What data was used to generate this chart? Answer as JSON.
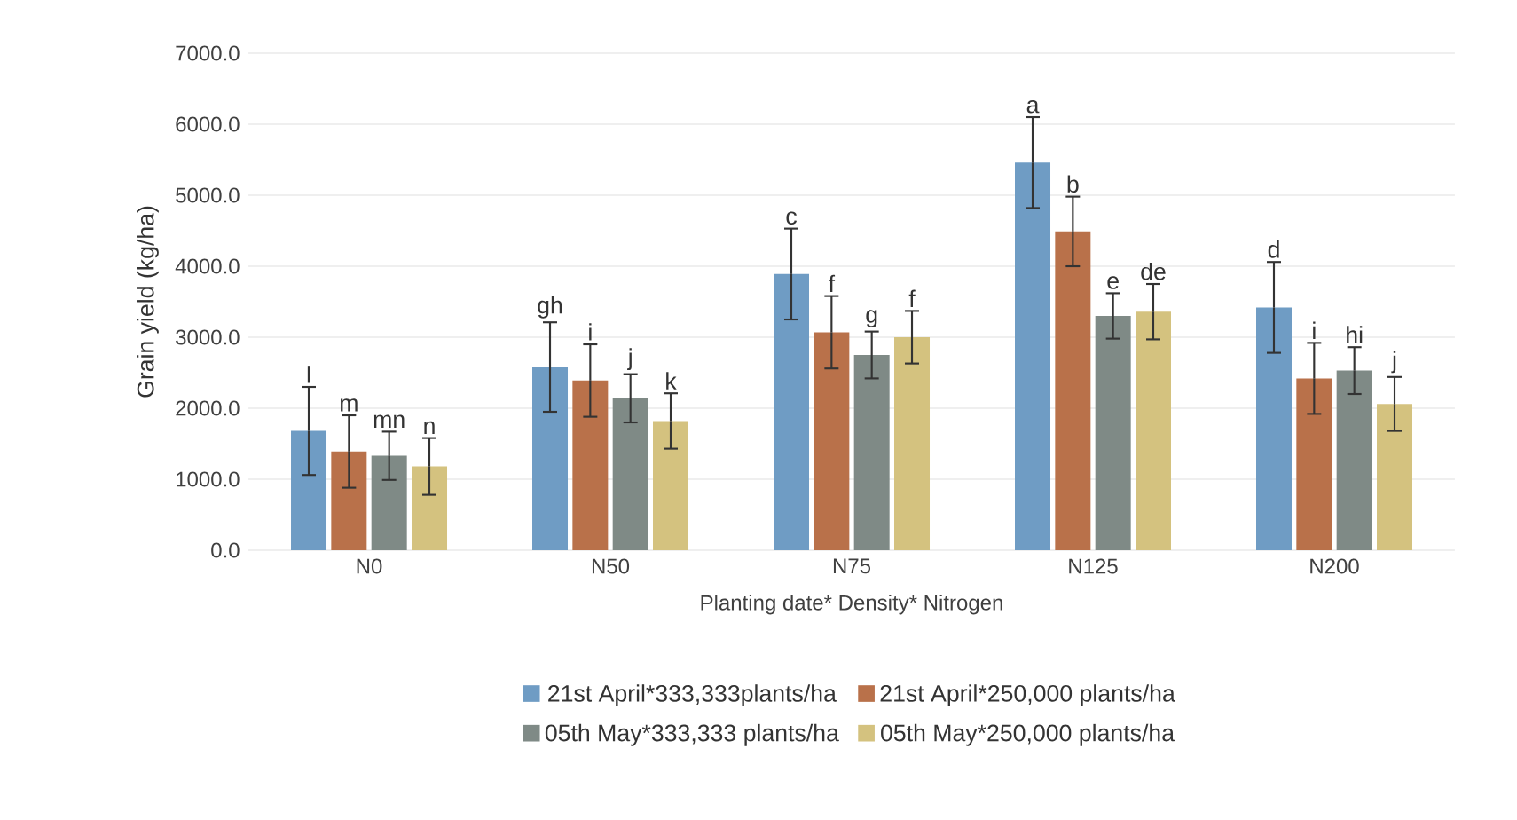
{
  "chart_data": {
    "type": "bar",
    "xlabel": "Planting date* Density* Nitrogen",
    "ylabel": "Grain yield (kg/ha)",
    "categories": [
      "N0",
      "N50",
      "N75",
      "N125",
      "N200"
    ],
    "series": [
      {
        "name": "21st April*333,333plants/ha",
        "color": "#6f9cc4",
        "values": [
          1680,
          2580,
          3890,
          5460,
          3420
        ],
        "errors": [
          620,
          630,
          640,
          640,
          640
        ]
      },
      {
        "name": "21st April*250,000 plants/ha",
        "color": "#b9714a",
        "values": [
          1390,
          2390,
          3070,
          4490,
          2420
        ],
        "errors": [
          510,
          510,
          510,
          490,
          500
        ]
      },
      {
        "name": "05th May*333,333 plants/ha",
        "color": "#7f8a86",
        "values": [
          1330,
          2140,
          2750,
          3300,
          2530
        ],
        "errors": [
          340,
          340,
          330,
          320,
          330
        ]
      },
      {
        "name": "05th May*250,000 plants/ha",
        "color": "#d4c27f",
        "values": [
          1180,
          1820,
          3000,
          3360,
          2060
        ],
        "errors": [
          400,
          390,
          370,
          390,
          380
        ]
      }
    ],
    "ylim": [
      0,
      7000
    ],
    "yticks": [
      {
        "value": 0,
        "label": "0.0"
      },
      {
        "value": 1000,
        "label": "1000.0"
      },
      {
        "value": 2000,
        "label": "2000.0"
      },
      {
        "value": 3000,
        "label": "3000.0"
      },
      {
        "value": 4000,
        "label": "4000.0"
      },
      {
        "value": 5000,
        "label": "5000.0"
      },
      {
        "value": 6000,
        "label": "6000.0"
      },
      {
        "value": 7000,
        "label": "7000.0"
      }
    ],
    "grid": "y",
    "legend": "bottom",
    "annotations": [
      "l",
      "m",
      "mn",
      "n",
      "gh",
      "i",
      "j",
      "k",
      "c",
      "f",
      "g",
      "f",
      "a",
      "b",
      "e",
      "de",
      "d",
      "i",
      "hi",
      "j"
    ]
  }
}
